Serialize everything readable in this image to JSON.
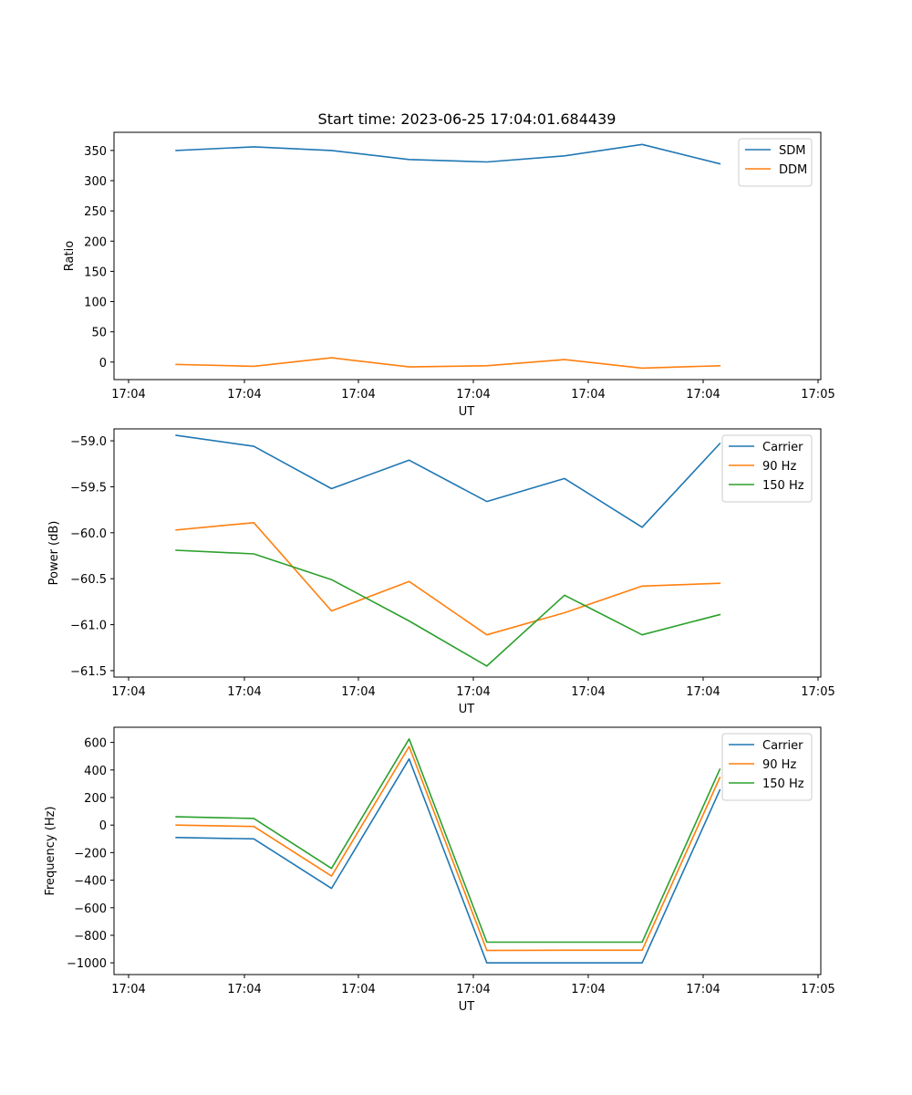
{
  "figure": {
    "title": "Start time: 2023-06-25 17:04:01.684439"
  },
  "chart_data": [
    {
      "type": "line",
      "xlabel": "UT",
      "ylabel": "Ratio",
      "xticklabels": [
        "17:04",
        "17:04",
        "17:04",
        "17:04",
        "17:04",
        "17:04",
        "17:05"
      ],
      "x": [
        1,
        2,
        3,
        4,
        5,
        6,
        7,
        8
      ],
      "xlim": [
        0.2,
        9.3
      ],
      "ylim": [
        -29,
        380
      ],
      "yticks": [
        0,
        50,
        100,
        150,
        200,
        250,
        300,
        350
      ],
      "yticklabels": [
        "0",
        "50",
        "100",
        "150",
        "200",
        "250",
        "300",
        "350"
      ],
      "grid": false,
      "legend_position": "top-right",
      "series": [
        {
          "name": "SDM",
          "color": "#1f77b4",
          "values": [
            350,
            356,
            350,
            335,
            331,
            341,
            360,
            328
          ]
        },
        {
          "name": "DDM",
          "color": "#ff7f0e",
          "values": [
            -4,
            -7,
            7,
            -8,
            -6,
            4,
            -10,
            -6
          ]
        }
      ]
    },
    {
      "type": "line",
      "xlabel": "UT",
      "ylabel": "Power (dB)",
      "xticklabels": [
        "17:04",
        "17:04",
        "17:04",
        "17:04",
        "17:04",
        "17:04",
        "17:05"
      ],
      "x": [
        1,
        2,
        3,
        4,
        5,
        6,
        7,
        8
      ],
      "xlim": [
        0.2,
        9.3
      ],
      "ylim": [
        -61.57,
        -58.87
      ],
      "yticks": [
        -61.5,
        -61.0,
        -60.5,
        -60.0,
        -59.5,
        -59.0
      ],
      "yticklabels": [
        "−61.5",
        "−61.0",
        "−60.5",
        "−60.0",
        "−59.5",
        "−59.0"
      ],
      "grid": false,
      "legend_position": "top-right",
      "series": [
        {
          "name": "Carrier",
          "color": "#1f77b4",
          "values": [
            -58.94,
            -59.06,
            -59.52,
            -59.21,
            -59.66,
            -59.41,
            -59.94,
            -59.03
          ]
        },
        {
          "name": "90 Hz",
          "color": "#ff7f0e",
          "values": [
            -59.97,
            -59.89,
            -60.85,
            -60.53,
            -61.11,
            -60.87,
            -60.58,
            -60.55
          ]
        },
        {
          "name": "150 Hz",
          "color": "#2ca02c",
          "values": [
            -60.19,
            -60.23,
            -60.51,
            -60.96,
            -61.45,
            -60.68,
            -61.11,
            -60.89
          ]
        }
      ]
    },
    {
      "type": "line",
      "xlabel": "UT",
      "ylabel": "Frequency (Hz)",
      "xticklabels": [
        "17:04",
        "17:04",
        "17:04",
        "17:04",
        "17:04",
        "17:04",
        "17:05"
      ],
      "x": [
        1,
        2,
        3,
        4,
        5,
        6,
        7,
        8
      ],
      "xlim": [
        0.2,
        9.3
      ],
      "ylim": [
        -1085,
        710
      ],
      "yticks": [
        -1000,
        -800,
        -600,
        -400,
        -200,
        0,
        200,
        400,
        600
      ],
      "yticklabels": [
        "−1000",
        "−800",
        "−600",
        "−400",
        "−200",
        "0",
        "200",
        "400",
        "600"
      ],
      "grid": false,
      "legend_position": "top-right",
      "series": [
        {
          "name": "Carrier",
          "color": "#1f77b4",
          "values": [
            -90,
            -100,
            -460,
            480,
            -1000,
            -1000,
            -1000,
            255
          ]
        },
        {
          "name": "90 Hz",
          "color": "#ff7f0e",
          "values": [
            0,
            -10,
            -370,
            570,
            -910,
            -908,
            -908,
            345
          ]
        },
        {
          "name": "150 Hz",
          "color": "#2ca02c",
          "values": [
            60,
            48,
            -315,
            625,
            -850,
            -850,
            -850,
            405
          ]
        }
      ]
    }
  ]
}
